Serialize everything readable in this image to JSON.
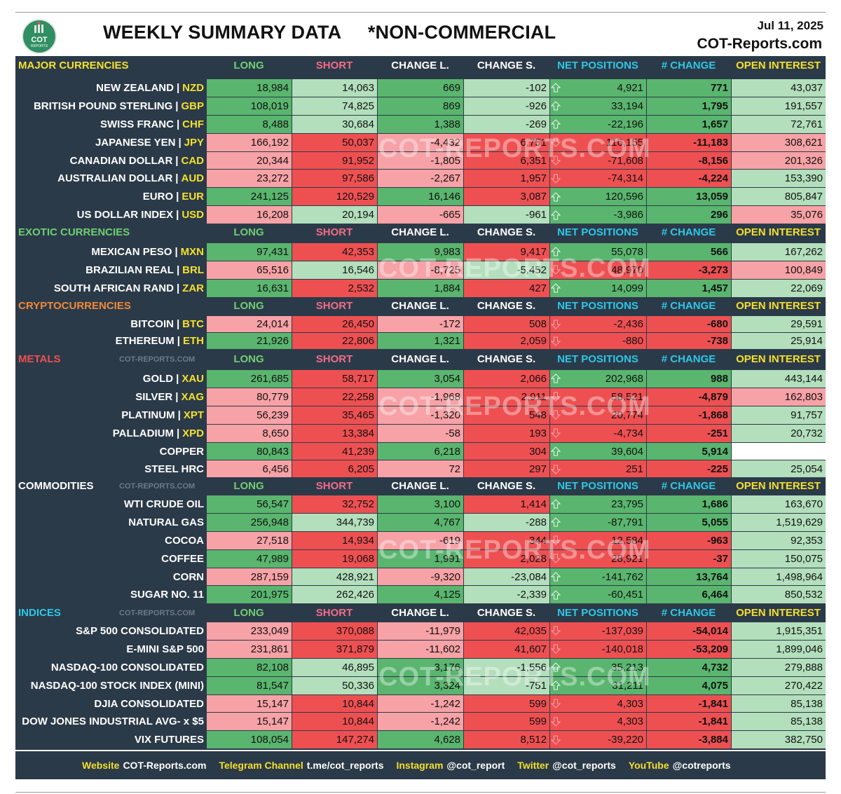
{
  "header": {
    "logo_text": "COT",
    "logo_sub": "REPORTS",
    "title": "WEEKLY SUMMARY DATA     *NON-COMMERCIAL",
    "date": "Jul 11, 2025",
    "site": "COT-Reports.com"
  },
  "columns": [
    "LONG",
    "SHORT",
    "CHANGE L.",
    "CHANGE S.",
    "NET POSITIONS",
    "# CHANGE",
    "OPEN INTEREST"
  ],
  "colors": {
    "dark_bg": "#2b3a48",
    "green": "#5ab56e",
    "light_green": "#b3dfbc",
    "red": "#ee5052",
    "light_red": "#f7a2a6",
    "yellow": "#f4e02e"
  },
  "watermark_text": "COT-REPORTS.COM",
  "small_watermark": "COT-REPORTS.COM",
  "sections": [
    {
      "title": "MAJOR CURRENCIES",
      "title_color": "#f4e02e",
      "small_watermark": false,
      "rows": [
        {
          "name": "NEW ZEALAND",
          "code": "NZD",
          "long": "18,984",
          "short": "14,063",
          "chl": "669",
          "chs": "-102",
          "dir": "up",
          "net": "4,921",
          "pct": "771",
          "oi": "43,037",
          "cl": [
            "g",
            "lg",
            "g",
            "lg",
            "g",
            "g",
            "lg"
          ]
        },
        {
          "name": "BRITISH POUND STERLING",
          "code": "GBP",
          "long": "108,019",
          "short": "74,825",
          "chl": "869",
          "chs": "-926",
          "dir": "up",
          "net": "33,194",
          "pct": "1,795",
          "oi": "191,557",
          "cl": [
            "g",
            "lg",
            "g",
            "lg",
            "g",
            "g",
            "lg"
          ]
        },
        {
          "name": "SWISS FRANC",
          "code": "CHF",
          "long": "8,488",
          "short": "30,684",
          "chl": "1,388",
          "chs": "-269",
          "dir": "up",
          "net": "-22,196",
          "pct": "1,657",
          "oi": "72,761",
          "cl": [
            "g",
            "lg",
            "g",
            "lg",
            "g",
            "g",
            "lg"
          ]
        },
        {
          "name": "JAPANESE YEN",
          "code": "JPY",
          "long": "166,192",
          "short": "50,037",
          "chl": "-4,432",
          "chs": "6,751",
          "dir": "down",
          "net": "116,155",
          "pct": "-11,183",
          "oi": "308,621",
          "cl": [
            "lr",
            "r",
            "lr",
            "r",
            "r",
            "r",
            "lr"
          ]
        },
        {
          "name": "CANADIAN DOLLAR",
          "code": "CAD",
          "long": "20,344",
          "short": "91,952",
          "chl": "-1,805",
          "chs": "6,351",
          "dir": "down",
          "net": "-71,608",
          "pct": "-8,156",
          "oi": "201,326",
          "cl": [
            "lr",
            "r",
            "lr",
            "r",
            "r",
            "r",
            "lr"
          ]
        },
        {
          "name": "AUSTRALIAN DOLLAR",
          "code": "AUD",
          "long": "23,272",
          "short": "97,586",
          "chl": "-2,267",
          "chs": "1,957",
          "dir": "down",
          "net": "-74,314",
          "pct": "-4,224",
          "oi": "153,390",
          "cl": [
            "lr",
            "r",
            "lr",
            "r",
            "r",
            "r",
            "lg"
          ]
        },
        {
          "name": "EURO",
          "code": "EUR",
          "long": "241,125",
          "short": "120,529",
          "chl": "16,146",
          "chs": "3,087",
          "dir": "up",
          "net": "120,596",
          "pct": "13,059",
          "oi": "805,847",
          "cl": [
            "g",
            "r",
            "g",
            "r",
            "g",
            "g",
            "lg"
          ]
        },
        {
          "name": "US DOLLAR INDEX",
          "code": "USD",
          "long": "16,208",
          "short": "20,194",
          "chl": "-665",
          "chs": "-961",
          "dir": "up",
          "net": "-3,986",
          "pct": "296",
          "oi": "35,076",
          "cl": [
            "lr",
            "lg",
            "lr",
            "lg",
            "g",
            "g",
            "lr"
          ]
        }
      ]
    },
    {
      "title": "EXOTIC CURRENCIES",
      "title_color": "#6fcf73",
      "small_watermark": false,
      "rows": [
        {
          "name": "MEXICAN PESO",
          "code": "MXN",
          "long": "97,431",
          "short": "42,353",
          "chl": "9,983",
          "chs": "9,417",
          "dir": "up",
          "net": "55,078",
          "pct": "566",
          "oi": "167,262",
          "cl": [
            "g",
            "r",
            "g",
            "r",
            "g",
            "g",
            "lg"
          ]
        },
        {
          "name": "BRAZILIAN REAL",
          "code": "BRL",
          "long": "65,516",
          "short": "16,546",
          "chl": "-8,725",
          "chs": "-5,452",
          "dir": "down",
          "net": "48,970",
          "pct": "-3,273",
          "oi": "100,849",
          "cl": [
            "lr",
            "lg",
            "lr",
            "lg",
            "r",
            "r",
            "lr"
          ]
        },
        {
          "name": "SOUTH AFRICAN RAND",
          "code": "ZAR",
          "long": "16,631",
          "short": "2,532",
          "chl": "1,884",
          "chs": "427",
          "dir": "up",
          "net": "14,099",
          "pct": "1,457",
          "oi": "22,069",
          "cl": [
            "g",
            "r",
            "g",
            "r",
            "g",
            "g",
            "lg"
          ]
        }
      ]
    },
    {
      "title": "CRYPTOCURRENCIES",
      "title_color": "#f08a3c",
      "small_watermark": false,
      "rows": [
        {
          "name": "BITCOIN",
          "code": "BTC",
          "long": "24,014",
          "short": "26,450",
          "chl": "-172",
          "chs": "508",
          "dir": "down",
          "net": "-2,436",
          "pct": "-680",
          "oi": "29,591",
          "cl": [
            "lr",
            "r",
            "lr",
            "r",
            "r",
            "r",
            "lg"
          ]
        },
        {
          "name": "ETHEREUM",
          "code": "ETH",
          "long": "21,926",
          "short": "22,806",
          "chl": "1,321",
          "chs": "2,059",
          "dir": "down",
          "net": "-880",
          "pct": "-738",
          "oi": "25,914",
          "cl": [
            "g",
            "r",
            "g",
            "r",
            "r",
            "r",
            "lg"
          ]
        }
      ]
    },
    {
      "title": "METALS",
      "title_color": "#ee5052",
      "small_watermark": true,
      "rows": [
        {
          "name": "GOLD",
          "code": "XAU",
          "long": "261,685",
          "short": "58,717",
          "chl": "3,054",
          "chs": "2,066",
          "dir": "up",
          "net": "202,968",
          "pct": "988",
          "oi": "443,144",
          "cl": [
            "g",
            "r",
            "g",
            "r",
            "g",
            "g",
            "lg"
          ]
        },
        {
          "name": "SILVER",
          "code": "XAG",
          "long": "80,779",
          "short": "22,258",
          "chl": "-1,968",
          "chs": "2,911",
          "dir": "down",
          "net": "58,521",
          "pct": "-4,879",
          "oi": "162,803",
          "cl": [
            "lr",
            "r",
            "lr",
            "r",
            "r",
            "r",
            "lr"
          ]
        },
        {
          "name": "PLATINUM",
          "code": "XPT",
          "long": "56,239",
          "short": "35,465",
          "chl": "-1,320",
          "chs": "548",
          "dir": "down",
          "net": "20,774",
          "pct": "-1,868",
          "oi": "91,757",
          "cl": [
            "lr",
            "r",
            "lr",
            "r",
            "r",
            "r",
            "lg"
          ]
        },
        {
          "name": "PALLADIUM",
          "code": "XPD",
          "long": "8,650",
          "short": "13,384",
          "chl": "-58",
          "chs": "193",
          "dir": "down",
          "net": "-4,734",
          "pct": "-251",
          "oi": "20,732",
          "cl": [
            "lr",
            "r",
            "lr",
            "r",
            "r",
            "r",
            "lg"
          ]
        },
        {
          "name": "COPPER",
          "code": "",
          "long": "80,843",
          "short": "41,239",
          "chl": "6,218",
          "chs": "304",
          "dir": "up",
          "net": "39,604",
          "pct": "5,914",
          "oi": "",
          "cl": [
            "g",
            "r",
            "g",
            "r",
            "g",
            "g",
            "lg"
          ]
        },
        {
          "name": "STEEL HRC",
          "code": "",
          "long": "6,456",
          "short": "6,205",
          "chl": "72",
          "chs": "297",
          "dir": "down",
          "net": "251",
          "pct": "-225",
          "oi": "25,054",
          "cl": [
            "lr",
            "r",
            "lr",
            "r",
            "r",
            "r",
            "lg"
          ]
        }
      ]
    },
    {
      "title": "COMMODITIES",
      "title_color": "#ffffff",
      "small_watermark": true,
      "rows": [
        {
          "name": "WTI CRUDE OIL",
          "code": "",
          "long": "56,547",
          "short": "32,752",
          "chl": "3,100",
          "chs": "1,414",
          "dir": "up",
          "net": "23,795",
          "pct": "1,686",
          "oi": "163,670",
          "cl": [
            "g",
            "r",
            "g",
            "r",
            "g",
            "g",
            "lg"
          ]
        },
        {
          "name": "NATURAL GAS",
          "code": "",
          "long": "256,948",
          "short": "344,739",
          "chl": "4,767",
          "chs": "-288",
          "dir": "up",
          "net": "-87,791",
          "pct": "5,055",
          "oi": "1,519,629",
          "cl": [
            "g",
            "lg",
            "g",
            "lg",
            "g",
            "g",
            "lg"
          ]
        },
        {
          "name": "COCOA",
          "code": "",
          "long": "27,518",
          "short": "14,934",
          "chl": "-619",
          "chs": "344",
          "dir": "down",
          "net": "12,584",
          "pct": "-963",
          "oi": "92,353",
          "cl": [
            "lr",
            "r",
            "lr",
            "r",
            "r",
            "r",
            "lg"
          ]
        },
        {
          "name": "COFFEE",
          "code": "",
          "long": "47,989",
          "short": "19,068",
          "chl": "1,991",
          "chs": "2,028",
          "dir": "down",
          "net": "28,921",
          "pct": "-37",
          "oi": "150,075",
          "cl": [
            "g",
            "r",
            "g",
            "r",
            "r",
            "r",
            "lg"
          ]
        },
        {
          "name": "CORN",
          "code": "",
          "long": "287,159",
          "short": "428,921",
          "chl": "-9,320",
          "chs": "-23,084",
          "dir": "up",
          "net": "-141,762",
          "pct": "13,764",
          "oi": "1,498,964",
          "cl": [
            "lr",
            "lg",
            "lr",
            "lg",
            "g",
            "g",
            "lg"
          ]
        },
        {
          "name": "SUGAR NO. 11",
          "code": "",
          "long": "201,975",
          "short": "262,426",
          "chl": "4,125",
          "chs": "-2,339",
          "dir": "up",
          "net": "-60,451",
          "pct": "6,464",
          "oi": "850,532",
          "cl": [
            "g",
            "lg",
            "g",
            "lg",
            "g",
            "g",
            "lg"
          ]
        }
      ]
    },
    {
      "title": "INDICES",
      "title_color": "#2ec7e8",
      "small_watermark": true,
      "rows": [
        {
          "name": "S&P 500 CONSOLIDATED",
          "code": "",
          "long": "233,049",
          "short": "370,088",
          "chl": "-11,979",
          "chs": "42,035",
          "dir": "down",
          "net": "-137,039",
          "pct": "-54,014",
          "oi": "1,915,351",
          "cl": [
            "lr",
            "r",
            "lr",
            "r",
            "r",
            "r",
            "lg"
          ]
        },
        {
          "name": "E-MINI S&P 500",
          "code": "",
          "long": "231,861",
          "short": "371,879",
          "chl": "-11,602",
          "chs": "41,607",
          "dir": "down",
          "net": "-140,018",
          "pct": "-53,209",
          "oi": "1,899,046",
          "cl": [
            "lr",
            "r",
            "lr",
            "r",
            "r",
            "r",
            "lg"
          ]
        },
        {
          "name": "NASDAQ-100 CONSOLIDATED",
          "code": "",
          "long": "82,108",
          "short": "46,895",
          "chl": "3,176",
          "chs": "-1,556",
          "dir": "up",
          "net": "35,213",
          "pct": "4,732",
          "oi": "279,888",
          "cl": [
            "g",
            "lg",
            "g",
            "lg",
            "g",
            "g",
            "lg"
          ]
        },
        {
          "name": "NASDAQ-100 STOCK INDEX (MINI)",
          "code": "",
          "long": "81,547",
          "short": "50,336",
          "chl": "3,324",
          "chs": "-751",
          "dir": "up",
          "net": "31,211",
          "pct": "4,075",
          "oi": "270,422",
          "cl": [
            "g",
            "lg",
            "g",
            "lg",
            "g",
            "g",
            "lg"
          ]
        },
        {
          "name": "DJIA CONSOLIDATED",
          "code": "",
          "long": "15,147",
          "short": "10,844",
          "chl": "-1,242",
          "chs": "599",
          "dir": "down",
          "net": "4,303",
          "pct": "-1,841",
          "oi": "85,138",
          "cl": [
            "lr",
            "r",
            "lr",
            "r",
            "r",
            "r",
            "lg"
          ]
        },
        {
          "name": "DOW JONES INDUSTRIAL AVG- x $5",
          "code": "",
          "long": "15,147",
          "short": "10,844",
          "chl": "-1,242",
          "chs": "599",
          "dir": "down",
          "net": "4,303",
          "pct": "-1,841",
          "oi": "85,138",
          "cl": [
            "lr",
            "r",
            "lr",
            "r",
            "r",
            "r",
            "lg"
          ]
        },
        {
          "name": "VIX FUTURES",
          "code": "",
          "long": "108,054",
          "short": "147,274",
          "chl": "4,628",
          "chs": "8,512",
          "dir": "down",
          "net": "-39,220",
          "pct": "-3,884",
          "oi": "382,750",
          "cl": [
            "g",
            "r",
            "g",
            "r",
            "r",
            "r",
            "lg"
          ]
        }
      ]
    }
  ],
  "footer": [
    {
      "key": "Website",
      "value": "COT-Reports.com"
    },
    {
      "key": "Telegram Channel",
      "value": "t.me/cot_reports"
    },
    {
      "key": "Instagram",
      "value": "@cot_report"
    },
    {
      "key": "Twitter",
      "value": "@cot_reports"
    },
    {
      "key": "YouTube",
      "value": "@cotreports"
    }
  ]
}
